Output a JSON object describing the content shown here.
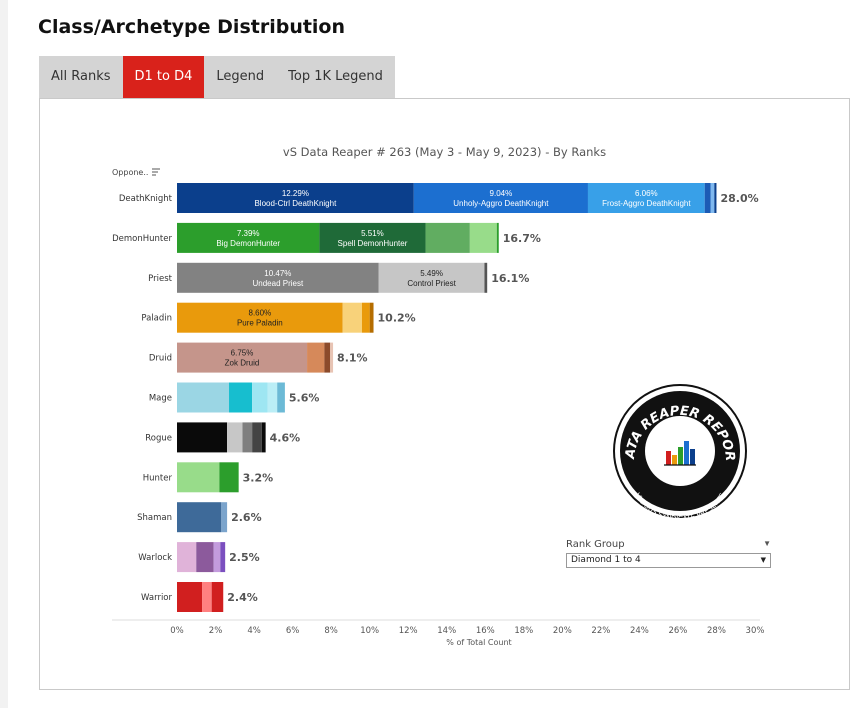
{
  "page": {
    "title": "Class/Archetype Distribution"
  },
  "tabs": [
    {
      "label": "All Ranks",
      "active": false
    },
    {
      "label": "D1 to D4",
      "active": true
    },
    {
      "label": "Legend",
      "active": false
    },
    {
      "label": "Top 1K Legend",
      "active": false
    }
  ],
  "rank_group": {
    "label": "Rank Group",
    "value": "Diamond 1 to 4"
  },
  "logo": {
    "text_top": "DATA REAPER REPORT",
    "text_bottom": "VICIOUS SYNDICATE PRESENTS"
  },
  "chart_data": {
    "type": "bar",
    "orientation": "horizontal",
    "stacked": true,
    "title": "vS Data Reaper #  263 (May 3 - May 9, 2023) - By Ranks",
    "row_header": "Oppone..",
    "xlabel": "% of Total Count",
    "xlim": [
      0,
      30
    ],
    "xticks": [
      "0%",
      "2%",
      "4%",
      "6%",
      "8%",
      "10%",
      "12%",
      "14%",
      "16%",
      "18%",
      "20%",
      "22%",
      "24%",
      "26%",
      "28%",
      "30%"
    ],
    "categories": [
      "DeathKnight",
      "DemonHunter",
      "Priest",
      "Paladin",
      "Druid",
      "Mage",
      "Rogue",
      "Hunter",
      "Shaman",
      "Warlock",
      "Warrior"
    ],
    "totals": [
      "28.0%",
      "16.7%",
      "16.1%",
      "10.2%",
      "8.1%",
      "5.6%",
      "4.6%",
      "3.2%",
      "2.6%",
      "2.5%",
      "2.4%"
    ],
    "rows": [
      {
        "class": "DeathKnight",
        "segments": [
          {
            "pct": "12.29%",
            "name": "Blood-Ctrl DeathKnight",
            "value": 12.29,
            "color": "#0b3f8c"
          },
          {
            "pct": "9.04%",
            "name": "Unholy-Aggro DeathKnight",
            "value": 9.04,
            "color": "#1c6fd0"
          },
          {
            "pct": "6.06%",
            "name": "Frost-Aggro DeathKnight",
            "value": 6.06,
            "color": "#38a0e8"
          },
          {
            "value": 0.3,
            "color": "#1c5bb5"
          },
          {
            "value": 0.2,
            "color": "#7fb8ef"
          },
          {
            "value": 0.11,
            "color": "#0b3f8c"
          }
        ]
      },
      {
        "class": "DemonHunter",
        "segments": [
          {
            "pct": "7.39%",
            "name": "Big DemonHunter",
            "value": 7.39,
            "color": "#2c9e2c"
          },
          {
            "pct": "5.51%",
            "name": "Spell DemonHunter",
            "value": 5.51,
            "color": "#1f6a38"
          },
          {
            "value": 2.3,
            "color": "#61ad61"
          },
          {
            "value": 1.4,
            "color": "#98dc8a"
          },
          {
            "value": 0.1,
            "color": "#2c9e2c"
          }
        ]
      },
      {
        "class": "Priest",
        "segments": [
          {
            "pct": "10.47%",
            "name": "Undead Priest",
            "value": 10.47,
            "color": "#828282"
          },
          {
            "pct": "5.49%",
            "name": "Control Priest",
            "value": 5.49,
            "color": "#c6c6c6"
          },
          {
            "value": 0.14,
            "color": "#555555"
          }
        ]
      },
      {
        "class": "Paladin",
        "segments": [
          {
            "pct": "8.60%",
            "name": "Pure Paladin",
            "value": 8.6,
            "color": "#e99a0c"
          },
          {
            "value": 1.0,
            "color": "#f8d27a"
          },
          {
            "value": 0.4,
            "color": "#e99a0c"
          },
          {
            "value": 0.2,
            "color": "#b56d00"
          }
        ]
      },
      {
        "class": "Druid",
        "segments": [
          {
            "pct": "6.75%",
            "name": "Zok Druid",
            "value": 6.75,
            "color": "#c5958b"
          },
          {
            "value": 0.9,
            "color": "#d6895a"
          },
          {
            "value": 0.3,
            "color": "#8c4b2b"
          },
          {
            "value": 0.15,
            "color": "#e8c4b4"
          }
        ]
      },
      {
        "class": "Mage",
        "segments": [
          {
            "value": 2.7,
            "color": "#9bd6e4"
          },
          {
            "value": 1.2,
            "color": "#17becf"
          },
          {
            "value": 0.8,
            "color": "#9ee6f2"
          },
          {
            "value": 0.5,
            "color": "#bbeef6"
          },
          {
            "value": 0.4,
            "color": "#6cbad6"
          }
        ]
      },
      {
        "class": "Rogue",
        "segments": [
          {
            "value": 2.6,
            "color": "#0a0a0a"
          },
          {
            "value": 0.8,
            "color": "#c7c7c7"
          },
          {
            "value": 0.5,
            "color": "#7f7f7f"
          },
          {
            "value": 0.5,
            "color": "#444444"
          },
          {
            "value": 0.2,
            "color": "#0a0a0a"
          }
        ]
      },
      {
        "class": "Hunter",
        "segments": [
          {
            "value": 2.2,
            "color": "#98dc8a"
          },
          {
            "value": 1.0,
            "color": "#2c9e2c"
          }
        ]
      },
      {
        "class": "Shaman",
        "segments": [
          {
            "value": 2.3,
            "color": "#3e6a99"
          },
          {
            "value": 0.3,
            "color": "#7ba4cc"
          }
        ]
      },
      {
        "class": "Warlock",
        "segments": [
          {
            "value": 1.0,
            "color": "#e0b3d9"
          },
          {
            "value": 0.9,
            "color": "#8c5a9c"
          },
          {
            "value": 0.35,
            "color": "#c39bdd"
          },
          {
            "value": 0.25,
            "color": "#7b4fbf"
          }
        ]
      },
      {
        "class": "Warrior",
        "segments": [
          {
            "value": 1.3,
            "color": "#d11f1f"
          },
          {
            "value": 0.5,
            "color": "#ff8080"
          },
          {
            "value": 0.6,
            "color": "#d11f1f"
          }
        ]
      }
    ]
  }
}
